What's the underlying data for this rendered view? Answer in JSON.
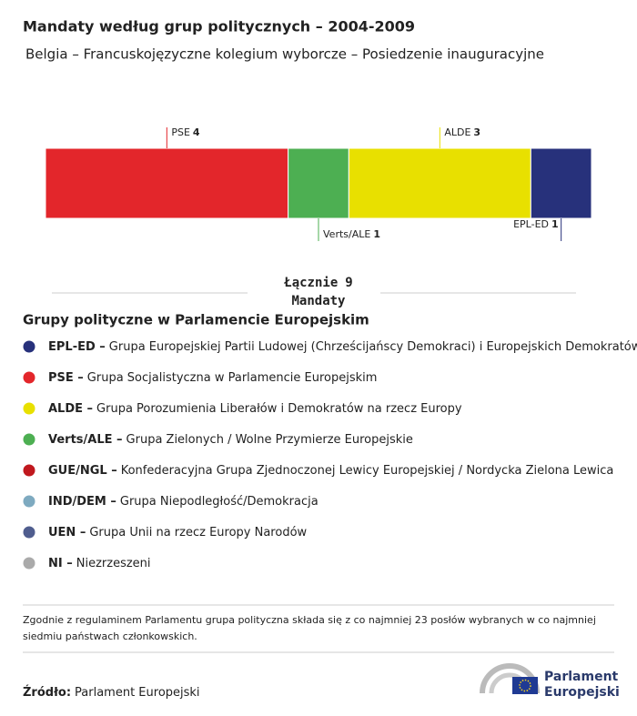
{
  "chart_data": {
    "type": "stacked-bar",
    "title": "Mandaty według grup politycznych – 2004-2009",
    "subtitle": "Belgia – Francuskojęzyczne kolegium wyborcze – Posiedzenie inauguracyjne",
    "series": [
      {
        "name": "PSE",
        "color": "#e3262b",
        "values": [
          4
        ]
      },
      {
        "name": "Verts/ALE",
        "color": "#4daf52",
        "values": [
          1
        ]
      },
      {
        "name": "ALDE",
        "color": "#e8e000",
        "values": [
          3
        ]
      },
      {
        "name": "EPL-ED",
        "color": "#27317b",
        "values": [
          1
        ]
      }
    ],
    "total": {
      "label": "Łącznie",
      "value": 9,
      "unit": "Mandaty"
    }
  },
  "legend": {
    "title": "Grupy polityczne w Parlamencie Europejskim",
    "items": [
      {
        "label": "EPL-ED –",
        "description": "Grupa Europejskiej Partii Ludowej (Chrześcijańscy Demokraci) i Europejskich Demokratów",
        "color": "#27317b"
      },
      {
        "label": "PSE –",
        "description": "Grupa Socjalistyczna w Parlamencie Europejskim",
        "color": "#e3262b"
      },
      {
        "label": "ALDE –",
        "description": "Grupa Porozumienia Liberałów i Demokratów na rzecz Europy",
        "color": "#e8e000"
      },
      {
        "label": "Verts/ALE –",
        "description": "Grupa Zielonych / Wolne Przymierze Europejskie",
        "color": "#4daf52"
      },
      {
        "label": "GUE/NGL –",
        "description": "Konfederacyjna Grupa Zjednoczonej Lewicy Europejskiej / Nordycka Zielona Lewica",
        "color": "#c0181e"
      },
      {
        "label": "IND/DEM –",
        "description": "Grupa Niepodległość/Demokracja",
        "color": "#7eaac0"
      },
      {
        "label": "UEN –",
        "description": "Grupa Unii na rzecz Europy Narodów",
        "color": "#4f5d8e"
      },
      {
        "label": "NI –",
        "description": "Niezrzeszeni",
        "color": "#aaaaaa"
      }
    ]
  },
  "footnote": "Zgodnie z regulaminem Parlamentu grupa polityczna składa się z co najmniej 23 posłów wybranych w co najmniej siedmiu państwach członkowskich.",
  "source": {
    "label": "Źródło:",
    "text": "Parlament Europejski"
  },
  "logo": {
    "line1": "Parlament",
    "line2": "Europejski"
  }
}
